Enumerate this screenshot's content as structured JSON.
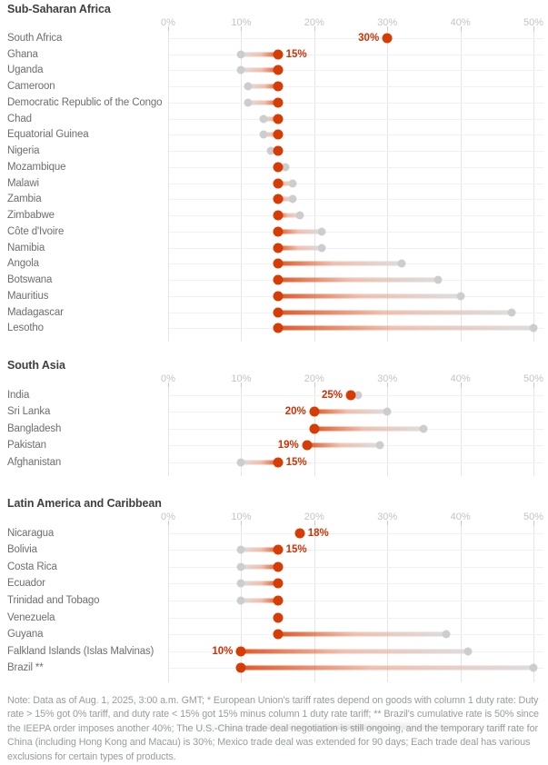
{
  "accent_color": "#d63c04",
  "old_dot_color": "#cdcdcd",
  "chart_data": [
    {
      "type": "dumbbell",
      "title": "Sub-Saharan Africa",
      "axis_ticks": [
        "0%",
        "10%",
        "20%",
        "30%",
        "40%",
        "50%"
      ],
      "xlim": [
        0,
        52
      ],
      "series_meaning": {
        "old": "previously announced tariff rate (gray)",
        "new": "new tariff rate (red)"
      },
      "rows": [
        {
          "country": "South Africa",
          "old": 30,
          "new": 30,
          "label": "30%",
          "label_side": "left"
        },
        {
          "country": "Ghana",
          "old": 10,
          "new": 15,
          "label": "15%",
          "label_side": "right"
        },
        {
          "country": "Uganda",
          "old": 10,
          "new": 15
        },
        {
          "country": "Cameroon",
          "old": 11,
          "new": 15
        },
        {
          "country": "Democratic Republic of the Congo",
          "old": 11,
          "new": 15
        },
        {
          "country": "Chad",
          "old": 13,
          "new": 15
        },
        {
          "country": "Equatorial Guinea",
          "old": 13,
          "new": 15
        },
        {
          "country": "Nigeria",
          "old": 14,
          "new": 15
        },
        {
          "country": "Mozambique",
          "old": 16,
          "new": 15
        },
        {
          "country": "Malawi",
          "old": 17,
          "new": 15
        },
        {
          "country": "Zambia",
          "old": 17,
          "new": 15
        },
        {
          "country": "Zimbabwe",
          "old": 18,
          "new": 15
        },
        {
          "country": "Côte d'Ivoire",
          "old": 21,
          "new": 15
        },
        {
          "country": "Namibia",
          "old": 21,
          "new": 15
        },
        {
          "country": "Angola",
          "old": 32,
          "new": 15
        },
        {
          "country": "Botswana",
          "old": 37,
          "new": 15
        },
        {
          "country": "Mauritius",
          "old": 40,
          "new": 15
        },
        {
          "country": "Madagascar",
          "old": 47,
          "new": 15
        },
        {
          "country": "Lesotho",
          "old": 50,
          "new": 15
        }
      ]
    },
    {
      "type": "dumbbell",
      "title": "South Asia",
      "axis_ticks": [
        "0%",
        "10%",
        "20%",
        "30%",
        "40%",
        "50%"
      ],
      "xlim": [
        0,
        52
      ],
      "rows": [
        {
          "country": "India",
          "old": 26,
          "new": 25,
          "label": "25%",
          "label_side": "left"
        },
        {
          "country": "Sri Lanka",
          "old": 30,
          "new": 20,
          "label": "20%",
          "label_side": "left"
        },
        {
          "country": "Bangladesh",
          "old": 35,
          "new": 20
        },
        {
          "country": "Pakistan",
          "old": 29,
          "new": 19,
          "label": "19%",
          "label_side": "left"
        },
        {
          "country": "Afghanistan",
          "old": 10,
          "new": 15,
          "label": "15%",
          "label_side": "right"
        }
      ]
    },
    {
      "type": "dumbbell",
      "title": "Latin America and Caribbean",
      "axis_ticks": [
        "0%",
        "10%",
        "20%",
        "30%",
        "40%",
        "50%"
      ],
      "xlim": [
        0,
        52
      ],
      "rows": [
        {
          "country": "Nicaragua",
          "old": 18,
          "new": 18,
          "label": "18%",
          "label_side": "right"
        },
        {
          "country": "Bolivia",
          "old": 10,
          "new": 15,
          "label": "15%",
          "label_side": "right"
        },
        {
          "country": "Costa Rica",
          "old": 10,
          "new": 15
        },
        {
          "country": "Ecuador",
          "old": 10,
          "new": 15
        },
        {
          "country": "Trinidad and Tobago",
          "old": 10,
          "new": 15
        },
        {
          "country": "Venezuela",
          "old": 15,
          "new": 15
        },
        {
          "country": "Guyana",
          "old": 38,
          "new": 15
        },
        {
          "country": "Falkland Islands (Islas Malvinas)",
          "old": 41,
          "new": 10,
          "label": "10%",
          "label_side": "left"
        },
        {
          "country": "Brazil **",
          "old": 50,
          "new": 10
        }
      ]
    }
  ],
  "note": "Note: Data as of Aug. 1, 2025, 3:00 a.m. GMT; * European Union's tariff rates depend on goods with column 1 duty rate: Duty rate > 15% got 0% tariff, and duty rate < 15% got 15% minus column 1 duty rate tariff; ** Brazil's cumulative rate is 50% since the IEEPA order imposes another 40%; The U.S.-China trade deal negotiation is still ongoing, and the temporary tariff rate for China (including Hong Kong and Macau) is 30%; Mexico trade deal was extended for 90 days; Each trade deal has various exclusions for certain types of products."
}
